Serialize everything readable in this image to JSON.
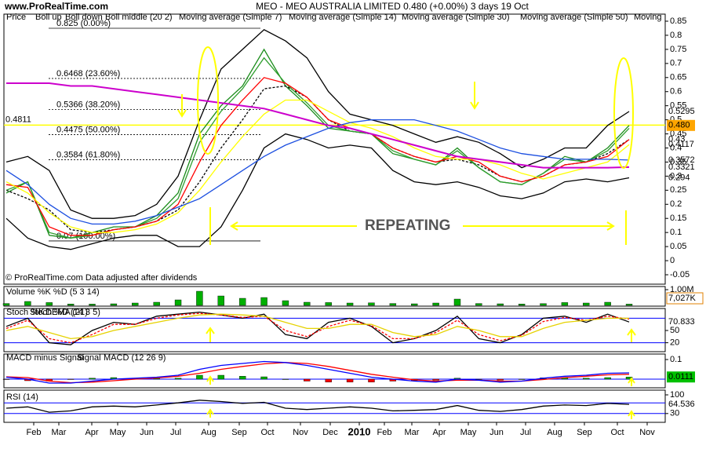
{
  "header": "www.ProRealTime.com",
  "x_axis_labels": [
    "Feb",
    "Mar",
    "Apr",
    "May",
    "Jun",
    "Jul",
    "Aug",
    "Sep",
    "Oct",
    "Nov",
    "Dec",
    "2010",
    "Feb",
    "Mar",
    "Apr",
    "May",
    "Jun",
    "Jul",
    "Aug",
    "Sep",
    "Oct",
    "Nov"
  ],
  "chart_data": [
    {
      "type": "line",
      "title": "MEO - MEO AUSTRALIA LIMITED   0.480 (+0.00%)   3 days  19 Oct",
      "annotation": "REPEATING",
      "source": "© ProRealTime.com Data adjusted after dividends",
      "ylim": [
        -0.05,
        0.85
      ],
      "yticks": [
        0.85,
        0.8,
        0.75,
        0.7,
        0.65,
        0.6,
        0.55,
        0.5,
        0.45,
        0.4,
        0.35,
        0.3,
        0.25,
        0.2,
        0.15,
        0.1,
        0.05,
        0,
        -0.05
      ],
      "hline": 0.4811,
      "hline_color": "#ffff00",
      "fib_levels": [
        {
          "value": 0.825,
          "label": "0.825 (0.00%)"
        },
        {
          "value": 0.6468,
          "label": "0.6468 (23.60%)"
        },
        {
          "value": 0.5366,
          "label": "0.5366 (38.20%)"
        },
        {
          "value": 0.4475,
          "label": "0.4475 (50.00%)"
        },
        {
          "value": 0.3584,
          "label": "0.3584 (61.80%)"
        },
        {
          "value": 0.07,
          "label": "0.07 (100.00%)"
        }
      ],
      "series": [
        {
          "name": "Price",
          "color": "#1a8c1a",
          "legend_color": "#000000",
          "label_last": true,
          "last_label": "0.480",
          "label_box": "#ffa500",
          "values": [
            0.24,
            0.28,
            0.09,
            0.08,
            0.1,
            0.12,
            0.12,
            0.16,
            0.24,
            0.45,
            0.55,
            0.62,
            0.75,
            0.62,
            0.55,
            0.47,
            0.46,
            0.45,
            0.38,
            0.36,
            0.34,
            0.4,
            0.33,
            0.28,
            0.27,
            0.31,
            0.37,
            0.35,
            0.4,
            0.48
          ]
        },
        {
          "name": "Boll up",
          "color": "#000000",
          "label_last": true,
          "values": [
            0.35,
            0.37,
            0.32,
            0.18,
            0.15,
            0.15,
            0.16,
            0.2,
            0.3,
            0.5,
            0.68,
            0.75,
            0.82,
            0.78,
            0.72,
            0.6,
            0.52,
            0.5,
            0.48,
            0.45,
            0.42,
            0.44,
            0.42,
            0.38,
            0.33,
            0.36,
            0.4,
            0.4,
            0.48,
            0.5295
          ]
        },
        {
          "name": "Boll down",
          "color": "#000000",
          "label_last": true,
          "values": [
            0.15,
            0.08,
            0.05,
            0.04,
            0.06,
            0.08,
            0.09,
            0.09,
            0.05,
            0.05,
            0.12,
            0.25,
            0.4,
            0.45,
            0.43,
            0.4,
            0.41,
            0.4,
            0.32,
            0.28,
            0.27,
            0.28,
            0.26,
            0.23,
            0.22,
            0.24,
            0.28,
            0.29,
            0.28,
            0.294
          ]
        },
        {
          "name": "Boll middle (20 2)",
          "color": "#000000",
          "dashed": true,
          "values": [
            0.25,
            0.22,
            0.18,
            0.11,
            0.1,
            0.11,
            0.12,
            0.14,
            0.18,
            0.28,
            0.4,
            0.5,
            0.61,
            0.62,
            0.58,
            0.5,
            0.46,
            0.45,
            0.4,
            0.37,
            0.35,
            0.36,
            0.34,
            0.3,
            0.28,
            0.3,
            0.34,
            0.35,
            0.38,
            0.43
          ]
        },
        {
          "name": "Moving average (Simple 7)",
          "color": "#2e9e2e",
          "values": [
            0.25,
            0.28,
            0.1,
            0.08,
            0.09,
            0.11,
            0.12,
            0.15,
            0.22,
            0.42,
            0.53,
            0.61,
            0.72,
            0.63,
            0.56,
            0.48,
            0.46,
            0.45,
            0.39,
            0.36,
            0.34,
            0.39,
            0.33,
            0.28,
            0.27,
            0.31,
            0.36,
            0.35,
            0.39,
            0.47
          ]
        },
        {
          "name": "Moving average (Simple 14)",
          "color": "#ff0000",
          "label_last": true,
          "values": [
            0.27,
            0.26,
            0.12,
            0.09,
            0.09,
            0.11,
            0.12,
            0.14,
            0.2,
            0.35,
            0.48,
            0.57,
            0.65,
            0.63,
            0.58,
            0.5,
            0.47,
            0.45,
            0.4,
            0.37,
            0.35,
            0.37,
            0.35,
            0.3,
            0.28,
            0.3,
            0.34,
            0.35,
            0.37,
            0.43
          ]
        },
        {
          "name": "Moving average (Simple 30)",
          "color": "#ffff00",
          "label_color": "#000000",
          "label_last": true,
          "values": [
            0.28,
            0.24,
            0.17,
            0.12,
            0.1,
            0.1,
            0.11,
            0.13,
            0.17,
            0.25,
            0.35,
            0.44,
            0.52,
            0.57,
            0.57,
            0.53,
            0.49,
            0.47,
            0.44,
            0.4,
            0.37,
            0.36,
            0.36,
            0.34,
            0.31,
            0.29,
            0.31,
            0.33,
            0.35,
            0.4117
          ]
        },
        {
          "name": "Moving average (Simple 50)",
          "color": "#1c4fe0",
          "label_last": true,
          "values": [
            0.32,
            0.27,
            0.2,
            0.15,
            0.13,
            0.13,
            0.14,
            0.16,
            0.19,
            0.22,
            0.27,
            0.32,
            0.37,
            0.41,
            0.44,
            0.47,
            0.49,
            0.5,
            0.5,
            0.5,
            0.48,
            0.46,
            0.43,
            0.4,
            0.38,
            0.37,
            0.36,
            0.36,
            0.36,
            0.3572
          ]
        },
        {
          "name": "Moving",
          "color": "#cc00cc",
          "label_last": true,
          "values": [
            0.63,
            0.63,
            0.63,
            0.62,
            0.62,
            0.61,
            0.6,
            0.59,
            0.58,
            0.57,
            0.56,
            0.55,
            0.54,
            0.52,
            0.5,
            0.48,
            0.47,
            0.45,
            0.43,
            0.41,
            0.39,
            0.37,
            0.36,
            0.35,
            0.34,
            0.33,
            0.33,
            0.33,
            0.33,
            0.3321
          ]
        }
      ]
    },
    {
      "type": "bar",
      "title": "Volume %K %D (5 3 14)",
      "current_label": "7,027K",
      "ylim": [
        0,
        1000000
      ],
      "yticks": [
        {
          "value": 1000000,
          "label": "1.00M"
        }
      ],
      "series": [
        {
          "name": "Volume",
          "color": "#00b000",
          "values": [
            120000,
            250000,
            180000,
            90000,
            80000,
            100000,
            150000,
            200000,
            350000,
            900000,
            600000,
            450000,
            500000,
            300000,
            200000,
            180000,
            150000,
            160000,
            120000,
            100000,
            150000,
            400000,
            120000,
            100000,
            90000,
            110000,
            180000,
            150000,
            200000,
            80000
          ]
        }
      ]
    },
    {
      "type": "line",
      "ylim": [
        0,
        100
      ],
      "yticks": [
        50,
        20
      ],
      "levels": [
        80,
        20
      ],
      "level_color": "#0000ff",
      "series": [
        {
          "name": "Stoch %K",
          "color": "#000000",
          "label_last": true,
          "values": [
            60,
            80,
            20,
            15,
            50,
            70,
            65,
            85,
            90,
            95,
            88,
            80,
            90,
            40,
            30,
            70,
            80,
            60,
            20,
            30,
            50,
            85,
            30,
            20,
            40,
            80,
            85,
            70,
            90,
            70.833
          ]
        },
        {
          "name": "Stoch %D (14 3 5)",
          "color": "#ff0000",
          "dashed": true,
          "values": [
            55,
            75,
            30,
            20,
            40,
            65,
            65,
            80,
            88,
            92,
            88,
            82,
            85,
            50,
            35,
            60,
            75,
            62,
            30,
            30,
            45,
            75,
            40,
            25,
            38,
            72,
            82,
            75,
            85,
            78
          ]
        },
        {
          "name": "DEMA (21)",
          "color": "#e6d200",
          "values": [
            50,
            60,
            45,
            30,
            35,
            50,
            60,
            70,
            80,
            88,
            90,
            88,
            85,
            70,
            55,
            55,
            65,
            65,
            45,
            35,
            40,
            60,
            50,
            35,
            35,
            55,
            70,
            75,
            80,
            80
          ]
        }
      ]
    },
    {
      "type": "line",
      "ylim": [
        -0.03,
        0.12
      ],
      "yticks": [
        0.1
      ],
      "levels": [
        0
      ],
      "level_color": "#0000ff",
      "series": [
        {
          "name": "MACD minus Signal",
          "type": "bar",
          "color": "#00b000",
          "negative_color": "#ff0000",
          "label_last": true,
          "label_box": "#00c000",
          "values": [
            -0.002,
            -0.008,
            -0.01,
            -0.002,
            0.005,
            0.008,
            0.005,
            0.004,
            0.005,
            0.02,
            0.02,
            0.015,
            0.012,
            0,
            -0.01,
            -0.015,
            -0.015,
            -0.015,
            -0.01,
            -0.007,
            -0.005,
            0.005,
            0,
            -0.005,
            0,
            0.007,
            0.007,
            0.005,
            0.008,
            0.0111
          ]
        },
        {
          "name": "Signal",
          "color": "#ff0000",
          "values": [
            0.012,
            0.008,
            -0.01,
            -0.018,
            -0.015,
            -0.008,
            0,
            0.006,
            0.015,
            0.03,
            0.05,
            0.065,
            0.078,
            0.085,
            0.08,
            0.065,
            0.045,
            0.025,
            0.01,
            -0.003,
            -0.01,
            -0.005,
            -0.005,
            -0.01,
            -0.01,
            -0.002,
            0.008,
            0.015,
            0.022,
            0.025
          ]
        },
        {
          "name": "MACD (12 26 9)",
          "color": "#0000ff",
          "values": [
            0.01,
            0,
            -0.02,
            -0.02,
            -0.01,
            0,
            0.005,
            0.01,
            0.02,
            0.05,
            0.07,
            0.08,
            0.09,
            0.085,
            0.07,
            0.05,
            0.03,
            0.01,
            0,
            -0.01,
            -0.015,
            0,
            -0.005,
            -0.015,
            -0.01,
            0.005,
            0.015,
            0.02,
            0.03,
            0.032
          ]
        }
      ]
    },
    {
      "type": "line",
      "ylim": [
        0,
        100
      ],
      "yticks": [
        100,
        30
      ],
      "levels": [
        70,
        30
      ],
      "level_color": "#0000ff",
      "series": [
        {
          "name": "RSI (14)",
          "color": "#000000",
          "label_last": true,
          "values": [
            50,
            55,
            35,
            40,
            55,
            58,
            55,
            62,
            70,
            80,
            75,
            68,
            72,
            50,
            45,
            50,
            55,
            50,
            40,
            42,
            45,
            60,
            42,
            38,
            45,
            58,
            62,
            60,
            68,
            64.536
          ]
        }
      ]
    }
  ]
}
